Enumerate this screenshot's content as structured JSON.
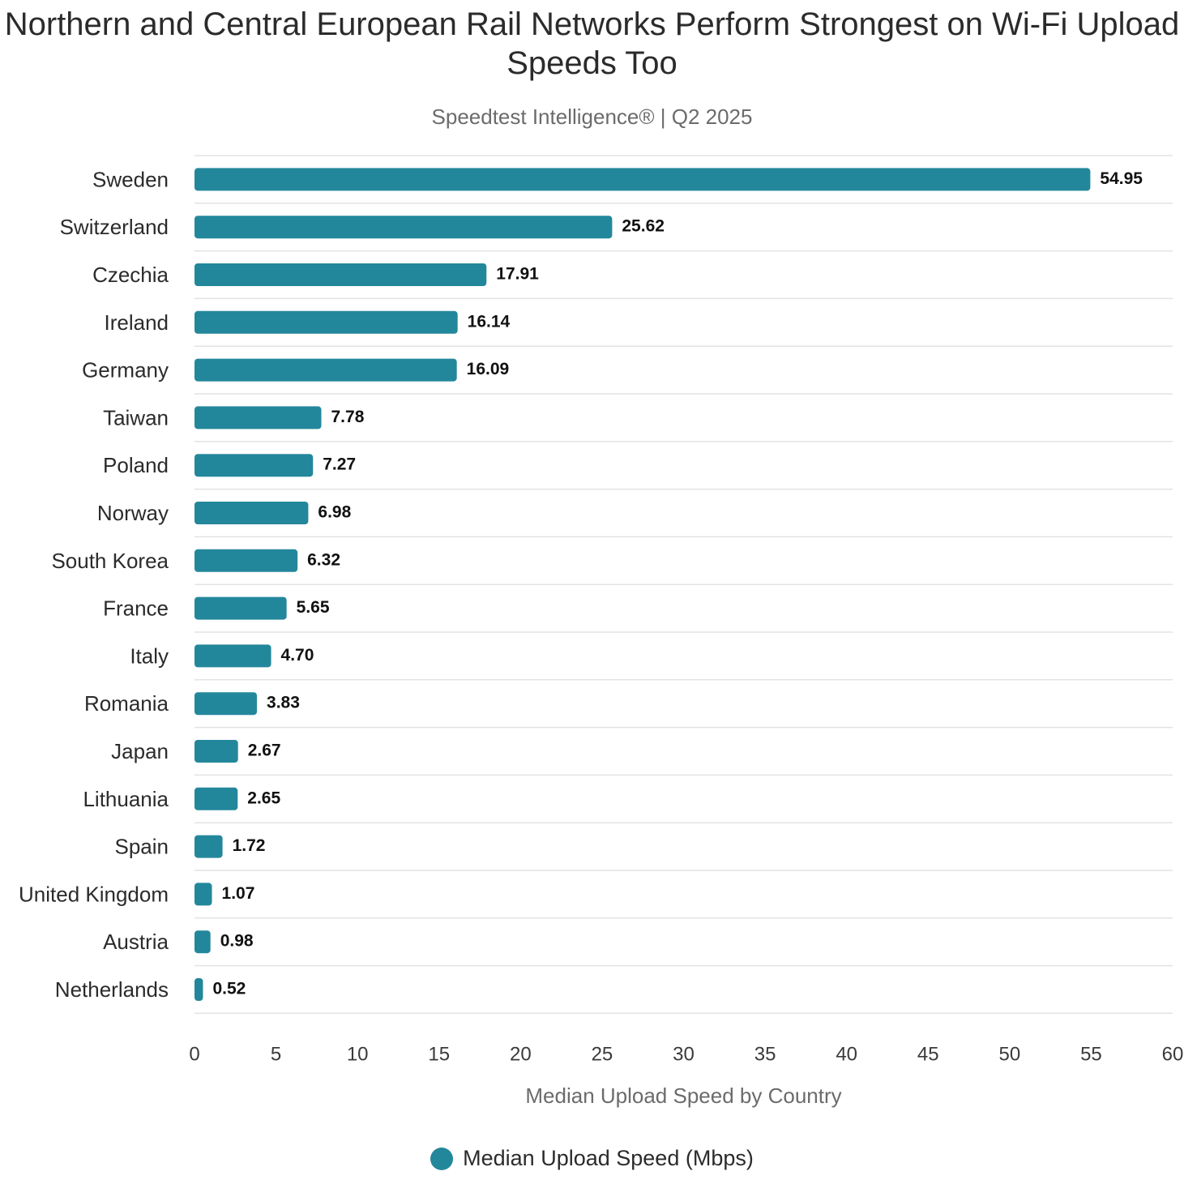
{
  "chart_data": {
    "type": "bar",
    "orientation": "horizontal",
    "title": "Northern and Central European Rail Networks Perform Strongest on Wi-Fi Upload Speeds Too",
    "subtitle": "Speedtest Intelligence® | Q2 2025",
    "xlabel": "Median Upload Speed by Country",
    "ylabel": "",
    "xlim": [
      0,
      60
    ],
    "x_ticks": [
      0,
      5,
      10,
      15,
      20,
      25,
      30,
      35,
      40,
      45,
      50,
      55,
      60
    ],
    "grid": "horizontal row separators",
    "legend_position": "bottom-center",
    "categories": [
      "Sweden",
      "Switzerland",
      "Czechia",
      "Ireland",
      "Germany",
      "Taiwan",
      "Poland",
      "Norway",
      "South Korea",
      "France",
      "Italy",
      "Romania",
      "Japan",
      "Lithuania",
      "Spain",
      "United Kingdom",
      "Austria",
      "Netherlands"
    ],
    "series": [
      {
        "name": "Median Upload Speed (Mbps)",
        "color": "#23879b",
        "values": [
          54.95,
          25.62,
          17.91,
          16.14,
          16.09,
          7.78,
          7.27,
          6.98,
          6.32,
          5.65,
          4.7,
          3.83,
          2.67,
          2.65,
          1.72,
          1.07,
          0.98,
          0.52
        ],
        "labels": [
          "54.95",
          "25.62",
          "17.91",
          "16.14",
          "16.09",
          "7.78",
          "7.27",
          "6.98",
          "6.32",
          "5.65",
          "4.70",
          "3.83",
          "2.67",
          "2.65",
          "1.72",
          "1.07",
          "0.98",
          "0.52"
        ]
      }
    ]
  }
}
